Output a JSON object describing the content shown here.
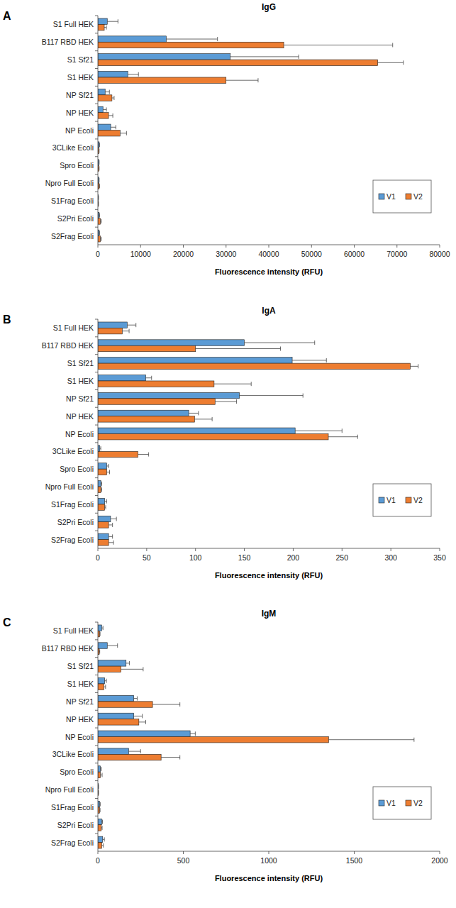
{
  "chart_data": [
    {
      "type": "bar",
      "orientation": "horizontal",
      "title": "IgG",
      "annotations": [
        "A"
      ],
      "x_label": "Fluorescence intensity (RFU)",
      "legend": "lower right",
      "grid": false,
      "categories": [
        "S1 Full HEK",
        "B117 RBD HEK",
        "S1 Sf21",
        "S1 HEK",
        "NP Sf21",
        "NP HEK",
        "NP Ecoli",
        "3CLike Ecoli",
        "Spro Ecoli",
        "Npro Full Ecoli",
        "S1Frag Ecoli",
        "S2Pri Ecoli",
        "S2Frag Ecoli"
      ],
      "xlim": [
        0,
        80000
      ],
      "xticks": [
        0,
        10000,
        20000,
        30000,
        40000,
        50000,
        60000,
        70000,
        80000
      ],
      "series": [
        {
          "name": "V1",
          "color": "#5b9bd5",
          "values": [
            2200,
            16000,
            31000,
            7000,
            1700,
            1200,
            3000,
            300,
            200,
            200,
            100,
            300,
            300
          ],
          "errors": [
            2500,
            12000,
            16000,
            2500,
            1000,
            800,
            1200,
            100,
            100,
            100,
            50,
            100,
            100
          ]
        },
        {
          "name": "V2",
          "color": "#ed7d31",
          "values": [
            1500,
            43500,
            65500,
            30000,
            3300,
            2500,
            5200,
            200,
            200,
            300,
            100,
            600,
            600
          ],
          "errors": [
            500,
            25500,
            6000,
            7500,
            500,
            1000,
            1500,
            100,
            100,
            100,
            50,
            200,
            200
          ]
        }
      ]
    },
    {
      "type": "bar",
      "orientation": "horizontal",
      "title": "IgA",
      "annotations": [
        "B"
      ],
      "x_label": "Fluorescence intensity (RFU)",
      "legend": "lower right",
      "grid": false,
      "categories": [
        "S1 Full HEK",
        "B117 RBD HEK",
        "S1 Sf21",
        "S1 HEK",
        "NP Sf21",
        "NP HEK",
        "NP Ecoli",
        "3CLike Ecoli",
        "Spro Ecoli",
        "Npro Full Ecoli",
        "S1Frag Ecoli",
        "S2Pri Ecoli",
        "S2Frag Ecoli"
      ],
      "xlim": [
        0,
        350
      ],
      "xticks": [
        0,
        50,
        100,
        150,
        200,
        250,
        300,
        350
      ],
      "series": [
        {
          "name": "V1",
          "color": "#5b9bd5",
          "values": [
            30,
            150,
            199,
            49,
            145,
            93,
            202,
            2,
            9,
            3,
            7,
            13,
            11
          ],
          "errors": [
            9,
            72,
            35,
            6,
            65,
            10,
            48,
            1,
            2,
            1,
            2,
            6,
            4
          ]
        },
        {
          "name": "V2",
          "color": "#ed7d31",
          "values": [
            25,
            100,
            320,
            119,
            120,
            99,
            236,
            41,
            9,
            3,
            7,
            11,
            11
          ],
          "errors": [
            7,
            87,
            8,
            38,
            22,
            18,
            30,
            11,
            3,
            1,
            1,
            4,
            5
          ]
        }
      ]
    },
    {
      "type": "bar",
      "orientation": "horizontal",
      "title": "IgM",
      "annotations": [
        "C"
      ],
      "x_label": "Fluorescence intensity (RFU)",
      "legend": "lower right",
      "grid": false,
      "categories": [
        "S1 Full HEK",
        "B117 RBD HEK",
        "S1 Sf21",
        "S1 HEK",
        "NP Sf21",
        "NP HEK",
        "NP Ecoli",
        "3CLike Ecoli",
        "Spro Ecoli",
        "Npro Full Ecoli",
        "S1Frag Ecoli",
        "S2Pri Ecoli",
        "S2Frag Ecoli"
      ],
      "xlim": [
        0,
        2000
      ],
      "xticks": [
        0,
        500,
        1000,
        1500,
        2000
      ],
      "series": [
        {
          "name": "V1",
          "color": "#5b9bd5",
          "values": [
            22,
            55,
            165,
            40,
            210,
            210,
            540,
            180,
            15,
            3,
            10,
            22,
            28
          ],
          "errors": [
            8,
            60,
            20,
            10,
            20,
            50,
            30,
            70,
            5,
            1,
            4,
            5,
            10
          ]
        },
        {
          "name": "V2",
          "color": "#ed7d31",
          "values": [
            10,
            8,
            135,
            35,
            320,
            240,
            1350,
            370,
            15,
            3,
            10,
            20,
            22
          ],
          "errors": [
            3,
            3,
            130,
            10,
            160,
            40,
            500,
            110,
            10,
            1,
            3,
            5,
            10
          ]
        }
      ]
    }
  ]
}
